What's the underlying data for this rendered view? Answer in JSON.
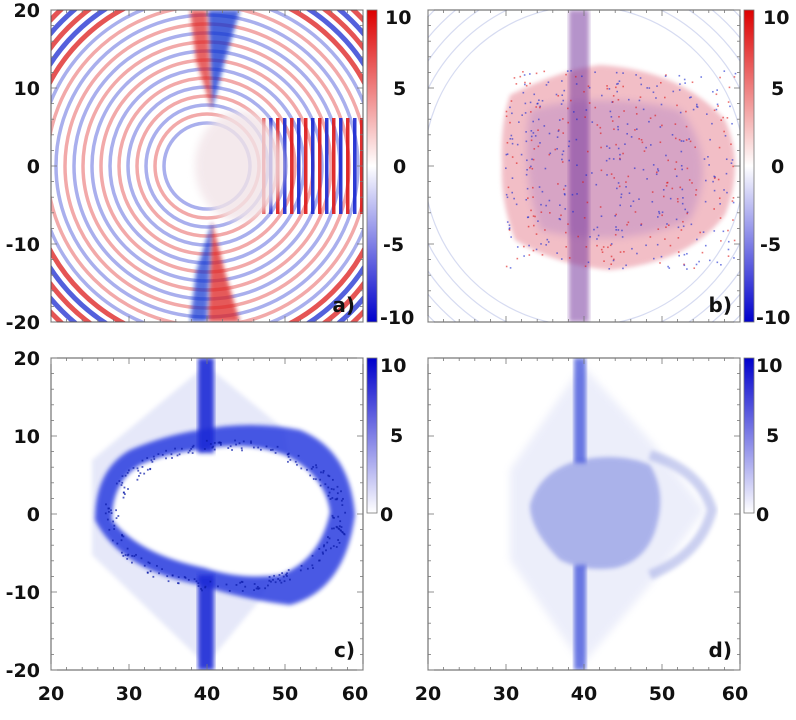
{
  "chart_data": [
    {
      "type": "heatmap",
      "panel_label": "a)",
      "title": "",
      "xlabel": "",
      "ylabel": "",
      "xlim": [
        20,
        60
      ],
      "ylim": [
        -20,
        20
      ],
      "y_ticks": [
        "20",
        "10",
        "0",
        "-10",
        "-20"
      ],
      "x_ticks": [],
      "colorbar": {
        "range": [
          -10,
          10
        ],
        "ticks": [
          "10",
          "5",
          "0",
          "-5",
          "-10"
        ],
        "colormap": "blue-white-red",
        "colors": [
          "#0000cc",
          "#ffffff",
          "#dd0000"
        ]
      }
    },
    {
      "type": "heatmap",
      "panel_label": "b)",
      "title": "",
      "xlabel": "",
      "ylabel": "",
      "xlim": [
        20,
        60
      ],
      "ylim": [
        -20,
        20
      ],
      "y_ticks": [],
      "x_ticks": [],
      "colorbar": {
        "range": [
          -10,
          10
        ],
        "ticks": [
          "10",
          "5",
          "0",
          "-5",
          "-10"
        ],
        "colormap": "blue-white-red",
        "colors": [
          "#0000cc",
          "#ffffff",
          "#dd0000"
        ]
      }
    },
    {
      "type": "heatmap",
      "panel_label": "c)",
      "title": "",
      "xlabel": "",
      "ylabel": "",
      "xlim": [
        20,
        60
      ],
      "ylim": [
        -20,
        20
      ],
      "y_ticks": [
        "20",
        "10",
        "0",
        "-10",
        "-20"
      ],
      "x_ticks": [
        "20",
        "30",
        "40",
        "50",
        "60"
      ],
      "colorbar": {
        "range": [
          0,
          10
        ],
        "ticks": [
          "10",
          "5",
          "0"
        ],
        "colormap": "white-blue",
        "colors": [
          "#ffffff",
          "#0000cc"
        ]
      }
    },
    {
      "type": "heatmap",
      "panel_label": "d)",
      "title": "",
      "xlabel": "",
      "ylabel": "",
      "xlim": [
        20,
        60
      ],
      "ylim": [
        -20,
        20
      ],
      "y_ticks": [],
      "x_ticks": [
        "20",
        "30",
        "40",
        "50",
        "60"
      ],
      "colorbar": {
        "range": [
          0,
          10
        ],
        "ticks": [
          "10",
          "5",
          "0"
        ],
        "colormap": "white-blue",
        "colors": [
          "#ffffff",
          "#0000cc"
        ]
      }
    }
  ]
}
